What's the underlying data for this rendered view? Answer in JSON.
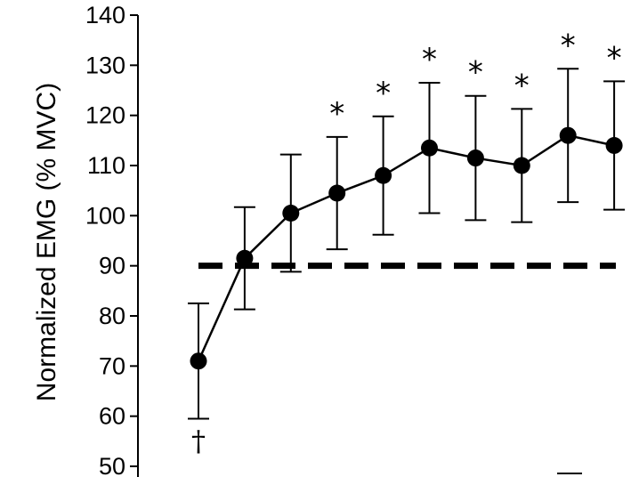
{
  "chart_data": {
    "type": "line",
    "title": "",
    "xlabel": "",
    "ylabel": "Normalized EMG (% MVC)",
    "ylim": [
      50,
      140
    ],
    "yticks": [
      50,
      60,
      70,
      80,
      90,
      100,
      110,
      120,
      130,
      140
    ],
    "grid": false,
    "legend": "none",
    "series": [
      {
        "values": [
          71,
          91.5,
          100.5,
          104.5,
          108,
          113.5,
          111.5,
          110,
          116,
          114
        ],
        "error": [
          11.5,
          10.2,
          11.7,
          11.2,
          11.8,
          13,
          12.4,
          11.3,
          13.3,
          12.8
        ],
        "markers": [
          "†",
          "",
          "",
          "*",
          "*",
          "*",
          "*",
          "*",
          "*",
          "*"
        ],
        "color": "#000000"
      }
    ],
    "reference_line": {
      "value": 90,
      "style": "dashed",
      "color": "#000000"
    }
  }
}
